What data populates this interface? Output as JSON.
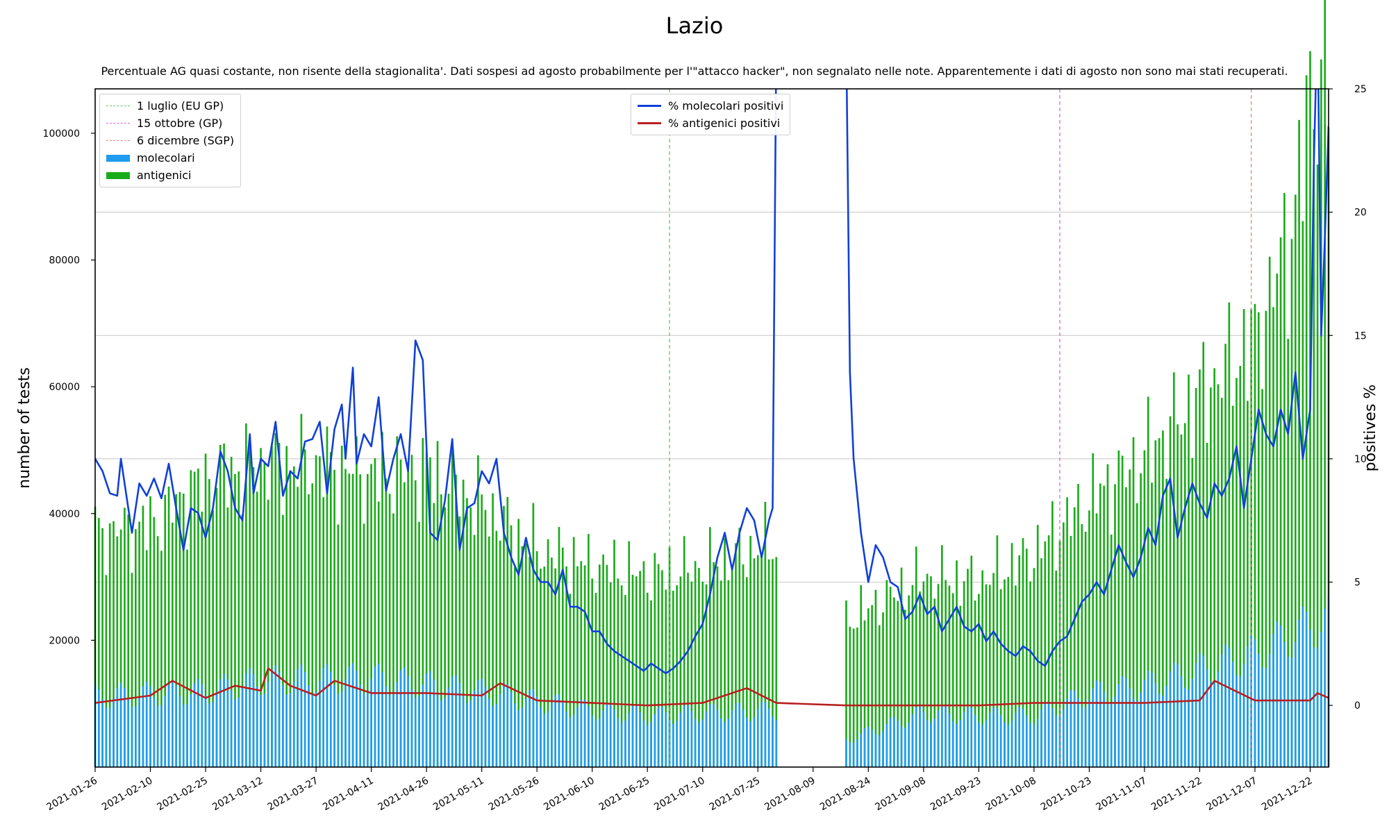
{
  "chart_data": {
    "type": "bar+line",
    "title": "Lazio",
    "subtitle": "Percentuale AG quasi costante, non risente della stagionalita'. Dati sospesi ad agosto probabilmente per l'\"attacco hacker\", non segnalato nelle note. Apparentemente i dati di agosto non sono mai stati recuperati.",
    "ylabel_left": "number of tests",
    "ylabel_right": "positives %",
    "ylim_left": [
      0,
      107000
    ],
    "yticks_left": [
      20000,
      40000,
      60000,
      80000,
      100000
    ],
    "ylim_right": [
      -2.5,
      25
    ],
    "yticks_right": [
      0,
      5,
      10,
      15,
      20,
      25
    ],
    "date_start": "2021-01-26",
    "date_end": "2021-12-27",
    "xticks": [
      "2021-01-26",
      "2021-02-10",
      "2021-02-25",
      "2021-03-12",
      "2021-03-27",
      "2021-04-11",
      "2021-04-26",
      "2021-05-11",
      "2021-05-26",
      "2021-06-10",
      "2021-06-25",
      "2021-07-10",
      "2021-07-25",
      "2021-08-09",
      "2021-08-24",
      "2021-09-08",
      "2021-09-23",
      "2021-10-08",
      "2021-10-23",
      "2021-11-07",
      "2021-11-22",
      "2021-12-07",
      "2021-12-22"
    ],
    "grid": "horizontal (right axis)",
    "data_gap": [
      "2021-07-31",
      "2021-08-17"
    ],
    "vlines": [
      {
        "date": "2021-07-01",
        "label": "1 luglio (EU GP)",
        "color": "#66c266"
      },
      {
        "date": "2021-10-15",
        "label": "15 ottobre (GP)",
        "color": "#d966d9"
      },
      {
        "date": "2021-12-06",
        "label": "6 dicembre (SGP)",
        "color": "#f08080"
      }
    ],
    "bars_legend": [
      {
        "label": "molecolari",
        "color": "#1f9bf0"
      },
      {
        "label": "antigenici",
        "color": "#1aab1a"
      }
    ],
    "lines_legend": [
      {
        "label": "% molecolari positivi",
        "color": "#1040d8"
      },
      {
        "label": "% antigenici positivi",
        "color": "#b81f1f"
      }
    ],
    "legend_placement": [
      "top-left",
      "top-center"
    ],
    "series_molecolari": [
      [
        "2021-01-26",
        13000
      ],
      [
        "2021-02-25",
        14000
      ],
      [
        "2021-03-12",
        16000
      ],
      [
        "2021-04-11",
        16500
      ],
      [
        "2021-05-11",
        14000
      ],
      [
        "2021-06-10",
        10500
      ],
      [
        "2021-06-25",
        9500
      ],
      [
        "2021-07-10",
        10000
      ],
      [
        "2021-07-30",
        10500
      ],
      [
        "2021-08-18",
        5000
      ],
      [
        "2021-09-08",
        10000
      ],
      [
        "2021-09-23",
        9500
      ],
      [
        "2021-10-08",
        9500
      ],
      [
        "2021-10-23",
        13500
      ],
      [
        "2021-11-07",
        15000
      ],
      [
        "2021-11-22",
        18000
      ],
      [
        "2021-12-07",
        21000
      ],
      [
        "2021-12-22",
        26000
      ],
      [
        "2021-12-27",
        27000
      ]
    ],
    "series_antigenici": [
      [
        "2021-01-26",
        29000
      ],
      [
        "2021-02-10",
        30000
      ],
      [
        "2021-02-25",
        37000
      ],
      [
        "2021-03-12",
        38500
      ],
      [
        "2021-03-27",
        38000
      ],
      [
        "2021-04-11",
        36000
      ],
      [
        "2021-04-26",
        38000
      ],
      [
        "2021-05-11",
        33000
      ],
      [
        "2021-05-26",
        27000
      ],
      [
        "2021-06-10",
        25500
      ],
      [
        "2021-06-25",
        24500
      ],
      [
        "2021-07-10",
        25500
      ],
      [
        "2021-07-30",
        29000
      ],
      [
        "2021-08-18",
        20000
      ],
      [
        "2021-09-08",
        24000
      ],
      [
        "2021-09-23",
        23500
      ],
      [
        "2021-10-08",
        28000
      ],
      [
        "2021-10-23",
        34000
      ],
      [
        "2021-11-07",
        40000
      ],
      [
        "2021-11-22",
        48000
      ],
      [
        "2021-12-07",
        55000
      ],
      [
        "2021-12-17",
        70000
      ],
      [
        "2021-12-22",
        90000
      ],
      [
        "2021-12-27",
        95000
      ]
    ],
    "series_pct_molecolari": [
      [
        "2021-01-26",
        10.0
      ],
      [
        "2021-01-28",
        9.5
      ],
      [
        "2021-01-30",
        8.6
      ],
      [
        "2021-02-01",
        8.5
      ],
      [
        "2021-02-02",
        10.0
      ],
      [
        "2021-02-04",
        8.0
      ],
      [
        "2021-02-05",
        7.0
      ],
      [
        "2021-02-07",
        9.0
      ],
      [
        "2021-02-09",
        8.5
      ],
      [
        "2021-02-11",
        9.2
      ],
      [
        "2021-02-13",
        8.4
      ],
      [
        "2021-02-15",
        9.8
      ],
      [
        "2021-02-17",
        8.0
      ],
      [
        "2021-02-19",
        6.3
      ],
      [
        "2021-02-21",
        8.0
      ],
      [
        "2021-02-23",
        7.8
      ],
      [
        "2021-02-25",
        6.8
      ],
      [
        "2021-02-27",
        8.0
      ],
      [
        "2021-03-01",
        10.3
      ],
      [
        "2021-03-03",
        9.5
      ],
      [
        "2021-03-05",
        8.0
      ],
      [
        "2021-03-07",
        7.5
      ],
      [
        "2021-03-09",
        11.0
      ],
      [
        "2021-03-10",
        8.6
      ],
      [
        "2021-03-12",
        10.0
      ],
      [
        "2021-03-14",
        9.7
      ],
      [
        "2021-03-16",
        11.5
      ],
      [
        "2021-03-18",
        8.5
      ],
      [
        "2021-03-20",
        9.5
      ],
      [
        "2021-03-22",
        9.2
      ],
      [
        "2021-03-24",
        10.7
      ],
      [
        "2021-03-26",
        10.8
      ],
      [
        "2021-03-28",
        11.5
      ],
      [
        "2021-03-30",
        8.6
      ],
      [
        "2021-04-01",
        11.2
      ],
      [
        "2021-04-03",
        12.2
      ],
      [
        "2021-04-04",
        10.0
      ],
      [
        "2021-04-06",
        13.7
      ],
      [
        "2021-04-07",
        9.8
      ],
      [
        "2021-04-09",
        11.0
      ],
      [
        "2021-04-11",
        10.5
      ],
      [
        "2021-04-13",
        12.5
      ],
      [
        "2021-04-15",
        8.7
      ],
      [
        "2021-04-17",
        10.0
      ],
      [
        "2021-04-19",
        11.0
      ],
      [
        "2021-04-21",
        9.5
      ],
      [
        "2021-04-23",
        14.8
      ],
      [
        "2021-04-25",
        14.0
      ],
      [
        "2021-04-27",
        7.0
      ],
      [
        "2021-04-29",
        6.7
      ],
      [
        "2021-05-01",
        8.3
      ],
      [
        "2021-05-03",
        10.8
      ],
      [
        "2021-05-05",
        6.3
      ],
      [
        "2021-05-07",
        8.0
      ],
      [
        "2021-05-09",
        8.2
      ],
      [
        "2021-05-11",
        9.5
      ],
      [
        "2021-05-13",
        9.0
      ],
      [
        "2021-05-15",
        10.0
      ],
      [
        "2021-05-17",
        7.0
      ],
      [
        "2021-05-19",
        6.0
      ],
      [
        "2021-05-21",
        5.3
      ],
      [
        "2021-05-23",
        6.8
      ],
      [
        "2021-05-25",
        5.5
      ],
      [
        "2021-05-27",
        5.0
      ],
      [
        "2021-05-29",
        5.0
      ],
      [
        "2021-05-31",
        4.5
      ],
      [
        "2021-06-02",
        5.5
      ],
      [
        "2021-06-04",
        4.0
      ],
      [
        "2021-06-06",
        4.0
      ],
      [
        "2021-06-08",
        3.8
      ],
      [
        "2021-06-10",
        3.0
      ],
      [
        "2021-06-12",
        3.0
      ],
      [
        "2021-06-14",
        2.5
      ],
      [
        "2021-06-16",
        2.2
      ],
      [
        "2021-06-18",
        2.0
      ],
      [
        "2021-06-20",
        1.8
      ],
      [
        "2021-06-22",
        1.6
      ],
      [
        "2021-06-24",
        1.4
      ],
      [
        "2021-06-26",
        1.7
      ],
      [
        "2021-06-28",
        1.5
      ],
      [
        "2021-06-30",
        1.3
      ],
      [
        "2021-07-02",
        1.5
      ],
      [
        "2021-07-04",
        1.8
      ],
      [
        "2021-07-06",
        2.2
      ],
      [
        "2021-07-08",
        2.8
      ],
      [
        "2021-07-10",
        3.3
      ],
      [
        "2021-07-12",
        4.5
      ],
      [
        "2021-07-14",
        6.0
      ],
      [
        "2021-07-16",
        7.0
      ],
      [
        "2021-07-18",
        5.5
      ],
      [
        "2021-07-20",
        7.0
      ],
      [
        "2021-07-22",
        8.0
      ],
      [
        "2021-07-24",
        7.5
      ],
      [
        "2021-07-26",
        6.0
      ],
      [
        "2021-07-28",
        7.5
      ],
      [
        "2021-07-29",
        8.0
      ],
      [
        "2021-07-30",
        27.0
      ],
      [
        "2021-08-18",
        27.0
      ],
      [
        "2021-08-19",
        13.5
      ],
      [
        "2021-08-20",
        10.0
      ],
      [
        "2021-08-22",
        7.0
      ],
      [
        "2021-08-24",
        5.0
      ],
      [
        "2021-08-26",
        6.5
      ],
      [
        "2021-08-28",
        6.0
      ],
      [
        "2021-08-30",
        5.0
      ],
      [
        "2021-09-01",
        4.8
      ],
      [
        "2021-09-03",
        3.5
      ],
      [
        "2021-09-05",
        3.8
      ],
      [
        "2021-09-07",
        4.5
      ],
      [
        "2021-09-09",
        3.7
      ],
      [
        "2021-09-11",
        4.0
      ],
      [
        "2021-09-13",
        3.0
      ],
      [
        "2021-09-15",
        3.5
      ],
      [
        "2021-09-17",
        4.0
      ],
      [
        "2021-09-19",
        3.2
      ],
      [
        "2021-09-21",
        3.0
      ],
      [
        "2021-09-23",
        3.3
      ],
      [
        "2021-09-25",
        2.6
      ],
      [
        "2021-09-27",
        3.0
      ],
      [
        "2021-09-29",
        2.5
      ],
      [
        "2021-10-01",
        2.2
      ],
      [
        "2021-10-03",
        2.0
      ],
      [
        "2021-10-05",
        2.4
      ],
      [
        "2021-10-07",
        2.2
      ],
      [
        "2021-10-09",
        1.8
      ],
      [
        "2021-10-11",
        1.6
      ],
      [
        "2021-10-13",
        2.2
      ],
      [
        "2021-10-15",
        2.6
      ],
      [
        "2021-10-17",
        2.8
      ],
      [
        "2021-10-19",
        3.5
      ],
      [
        "2021-10-21",
        4.2
      ],
      [
        "2021-10-23",
        4.5
      ],
      [
        "2021-10-25",
        5.0
      ],
      [
        "2021-10-27",
        4.5
      ],
      [
        "2021-10-29",
        5.5
      ],
      [
        "2021-10-31",
        6.5
      ],
      [
        "2021-11-02",
        5.8
      ],
      [
        "2021-11-04",
        5.2
      ],
      [
        "2021-11-06",
        6.0
      ],
      [
        "2021-11-08",
        7.2
      ],
      [
        "2021-11-10",
        6.5
      ],
      [
        "2021-11-12",
        8.5
      ],
      [
        "2021-11-14",
        9.2
      ],
      [
        "2021-11-16",
        6.8
      ],
      [
        "2021-11-18",
        8.0
      ],
      [
        "2021-11-20",
        9.0
      ],
      [
        "2021-11-22",
        8.2
      ],
      [
        "2021-11-24",
        7.6
      ],
      [
        "2021-11-26",
        9.0
      ],
      [
        "2021-11-28",
        8.5
      ],
      [
        "2021-11-30",
        9.2
      ],
      [
        "2021-12-02",
        10.5
      ],
      [
        "2021-12-04",
        8.0
      ],
      [
        "2021-12-06",
        10.0
      ],
      [
        "2021-12-08",
        12.0
      ],
      [
        "2021-12-10",
        11.0
      ],
      [
        "2021-12-12",
        10.5
      ],
      [
        "2021-12-14",
        12.0
      ],
      [
        "2021-12-16",
        11.0
      ],
      [
        "2021-12-18",
        13.5
      ],
      [
        "2021-12-20",
        10.0
      ],
      [
        "2021-12-22",
        12.0
      ],
      [
        "2021-12-23",
        22.0
      ],
      [
        "2021-12-24",
        28.0
      ],
      [
        "2021-12-25",
        15.0
      ],
      [
        "2021-12-26",
        19.0
      ],
      [
        "2021-12-27",
        23.5
      ]
    ],
    "series_pct_antigenici": [
      [
        "2021-01-26",
        0.1
      ],
      [
        "2021-02-10",
        0.4
      ],
      [
        "2021-02-16",
        1.0
      ],
      [
        "2021-02-25",
        0.3
      ],
      [
        "2021-03-05",
        0.8
      ],
      [
        "2021-03-12",
        0.6
      ],
      [
        "2021-03-14",
        1.5
      ],
      [
        "2021-03-20",
        0.8
      ],
      [
        "2021-03-27",
        0.4
      ],
      [
        "2021-04-01",
        1.0
      ],
      [
        "2021-04-11",
        0.5
      ],
      [
        "2021-04-26",
        0.5
      ],
      [
        "2021-05-11",
        0.4
      ],
      [
        "2021-05-16",
        0.9
      ],
      [
        "2021-05-26",
        0.2
      ],
      [
        "2021-06-10",
        0.1
      ],
      [
        "2021-06-25",
        0.0
      ],
      [
        "2021-07-10",
        0.1
      ],
      [
        "2021-07-22",
        0.7
      ],
      [
        "2021-07-30",
        0.1
      ],
      [
        "2021-08-18",
        0.0
      ],
      [
        "2021-09-08",
        0.0
      ],
      [
        "2021-09-23",
        0.0
      ],
      [
        "2021-10-08",
        0.1
      ],
      [
        "2021-10-23",
        0.1
      ],
      [
        "2021-11-07",
        0.1
      ],
      [
        "2021-11-22",
        0.2
      ],
      [
        "2021-11-26",
        1.0
      ],
      [
        "2021-12-07",
        0.2
      ],
      [
        "2021-12-22",
        0.2
      ],
      [
        "2021-12-24",
        0.5
      ],
      [
        "2021-12-27",
        0.3
      ]
    ]
  }
}
